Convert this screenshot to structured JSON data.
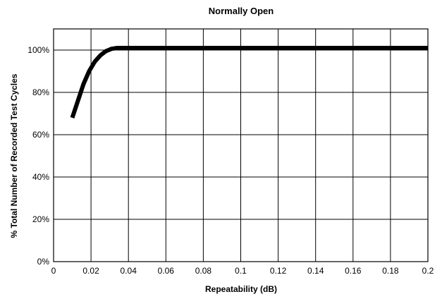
{
  "chart_data": {
    "type": "line",
    "title": "Normally Open",
    "xlabel": "Repeatability (dB)",
    "ylabel": "% Total Number of Recorded Test Cycles",
    "xlim": [
      0,
      0.2
    ],
    "ylim": [
      0,
      110
    ],
    "xticks": [
      0,
      0.02,
      0.04,
      0.06,
      0.08,
      0.1,
      0.12,
      0.14,
      0.16,
      0.18,
      0.2
    ],
    "xtick_labels": [
      "0",
      "0.02",
      "0.04",
      "0.06",
      "0.08",
      "0.1",
      "0.12",
      "0.14",
      "0.16",
      "0.18",
      "0.2"
    ],
    "yticks": [
      0,
      20,
      40,
      60,
      80,
      100
    ],
    "ytick_labels": [
      "0%",
      "20%",
      "40%",
      "60%",
      "80%",
      "100%"
    ],
    "grid": true,
    "line_color": "#000000",
    "series": [
      {
        "x": [
          0.01,
          0.013,
          0.016,
          0.019,
          0.022,
          0.025,
          0.028,
          0.031,
          0.034,
          0.04,
          0.06,
          0.1,
          0.15,
          0.2
        ],
        "y": [
          68,
          76,
          84,
          90,
          94.5,
          97.5,
          99.5,
          100.6,
          101,
          101,
          101,
          101,
          101,
          101
        ]
      }
    ]
  }
}
